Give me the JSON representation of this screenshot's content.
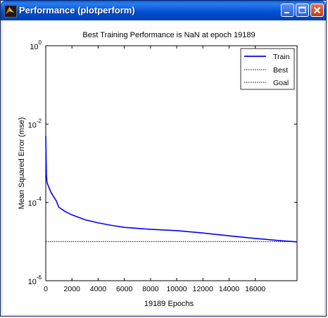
{
  "window": {
    "title": "Performance (plotperform)"
  },
  "chart_data": {
    "type": "line",
    "title": "Best Training Performance is NaN at epoch 19189",
    "xlabel": "19189 Epochs",
    "ylabel": "Mean Squared Error  (mse)",
    "x_ticks": [
      0,
      2000,
      4000,
      6000,
      8000,
      10000,
      12000,
      14000,
      16000
    ],
    "x_tick_labels": [
      "0",
      "2000",
      "4000",
      "6000",
      "8000",
      "10000",
      "12000",
      "14000",
      "16000"
    ],
    "y_ticks": [
      1,
      0.01,
      0.0001,
      1e-06
    ],
    "y_tick_bases": [
      "10",
      "10",
      "10",
      "10"
    ],
    "y_tick_exps": [
      "0",
      "-2",
      "-4",
      "-6"
    ],
    "xlim": [
      0,
      19189
    ],
    "ylim": [
      1e-06,
      1
    ],
    "y_scale": "log",
    "grid": false,
    "legend_position": "top-right",
    "series": [
      {
        "name": "Train",
        "color": "#0000ff",
        "style": "solid",
        "x": [
          0,
          50,
          100,
          200,
          400,
          600,
          800,
          1000,
          1500,
          2000,
          3000,
          4000,
          5000,
          6000,
          8000,
          10000,
          12000,
          14000,
          16000,
          18000,
          19189
        ],
        "y": [
          0.005,
          0.0005,
          0.00032,
          0.00026,
          0.00018,
          0.00014,
          0.00011,
          7.5e-05,
          5.8e-05,
          4.8e-05,
          3.6e-05,
          3e-05,
          2.6e-05,
          2.3e-05,
          2.05e-05,
          1.9e-05,
          1.65e-05,
          1.4e-05,
          1.2e-05,
          1.05e-05,
          9.8e-06
        ]
      },
      {
        "name": "Best",
        "color": "#000000",
        "style": "dotted",
        "x": [],
        "y": []
      },
      {
        "name": "Goal",
        "color": "#000000",
        "style": "dotted",
        "x": [
          0,
          19189
        ],
        "y": [
          1e-05,
          1e-05
        ]
      }
    ]
  }
}
